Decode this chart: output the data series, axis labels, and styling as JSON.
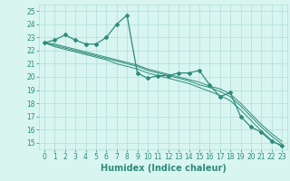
{
  "x_data": [
    0,
    1,
    2,
    3,
    4,
    5,
    6,
    7,
    8,
    9,
    10,
    11,
    12,
    13,
    14,
    15,
    16,
    17,
    18,
    19,
    20,
    21,
    22,
    23
  ],
  "y_main": [
    22.6,
    22.8,
    23.2,
    22.8,
    22.5,
    22.5,
    23.0,
    24.0,
    24.7,
    20.3,
    19.9,
    20.1,
    20.1,
    20.3,
    20.3,
    20.5,
    19.4,
    18.5,
    18.8,
    17.0,
    16.2,
    15.8,
    15.1,
    14.8
  ],
  "y_line1": [
    22.6,
    22.4,
    22.2,
    22.0,
    21.8,
    21.6,
    21.4,
    21.2,
    21.0,
    20.8,
    20.5,
    20.3,
    20.1,
    19.9,
    19.7,
    19.4,
    19.2,
    18.9,
    18.5,
    17.8,
    17.0,
    16.2,
    15.5,
    14.9
  ],
  "y_line2": [
    22.6,
    22.3,
    22.1,
    21.9,
    21.7,
    21.5,
    21.3,
    21.0,
    20.8,
    20.6,
    20.3,
    20.1,
    19.9,
    19.7,
    19.5,
    19.2,
    18.9,
    18.6,
    18.2,
    17.5,
    16.7,
    15.9,
    15.2,
    14.7
  ],
  "y_line3": [
    22.6,
    22.5,
    22.3,
    22.1,
    21.9,
    21.7,
    21.5,
    21.3,
    21.1,
    20.9,
    20.6,
    20.4,
    20.2,
    20.0,
    19.8,
    19.6,
    19.3,
    19.1,
    18.7,
    18.0,
    17.2,
    16.4,
    15.7,
    15.1
  ],
  "color": "#2e8b7a",
  "bg_color": "#d8f5f0",
  "grid_color": "#b0ddd8",
  "xlabel": "Humidex (Indice chaleur)",
  "ylim": [
    14.5,
    25.5
  ],
  "xlim": [
    -0.5,
    23.5
  ],
  "yticks": [
    15,
    16,
    17,
    18,
    19,
    20,
    21,
    22,
    23,
    24,
    25
  ],
  "xticks": [
    0,
    1,
    2,
    3,
    4,
    5,
    6,
    7,
    8,
    9,
    10,
    11,
    12,
    13,
    14,
    15,
    16,
    17,
    18,
    19,
    20,
    21,
    22,
    23
  ],
  "tick_fontsize": 5.5,
  "xlabel_fontsize": 7
}
